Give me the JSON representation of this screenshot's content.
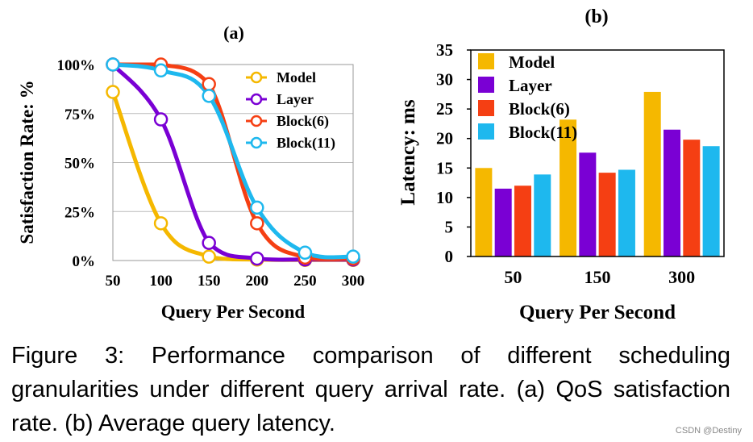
{
  "chart_data": [
    {
      "type": "line",
      "title": "(a)",
      "xlabel": "Query Per Second",
      "ylabel": "Satisfaction Rate: %",
      "x": [
        50,
        100,
        150,
        200,
        250,
        300
      ],
      "xlim": [
        50,
        300
      ],
      "ylim": [
        0,
        100
      ],
      "yticks": [
        "0%",
        "25%",
        "50%",
        "75%",
        "100%"
      ],
      "ytick_values": [
        0,
        25,
        50,
        75,
        100
      ],
      "grid": true,
      "legend": "top-right",
      "series": [
        {
          "name": "Model",
          "color": "#F5B800",
          "values": [
            86,
            19,
            2,
            0.5,
            0.3,
            0.3
          ]
        },
        {
          "name": "Layer",
          "color": "#7A00D4",
          "values": [
            100,
            72,
            9,
            1,
            0.5,
            0.5
          ]
        },
        {
          "name": "Block(6)",
          "color": "#F53F13",
          "values": [
            100,
            100,
            90,
            19,
            1.5,
            1
          ]
        },
        {
          "name": "Block(11)",
          "color": "#1EB8EE",
          "values": [
            100,
            97,
            84,
            27,
            4,
            2
          ]
        }
      ]
    },
    {
      "type": "bar",
      "title": "(b)",
      "xlabel": "Query Per Second",
      "ylabel": "Latency: ms",
      "categories": [
        "50",
        "150",
        "300"
      ],
      "ylim": [
        0,
        35
      ],
      "yticks": [
        0,
        5,
        10,
        15,
        20,
        25,
        30,
        35
      ],
      "legend": "top-left",
      "series": [
        {
          "name": "Model",
          "color": "#F5B800",
          "values": [
            15.0,
            23.2,
            27.9
          ]
        },
        {
          "name": "Layer",
          "color": "#7A00D4",
          "values": [
            11.5,
            17.6,
            21.5
          ]
        },
        {
          "name": "Block(6)",
          "color": "#F53F13",
          "values": [
            12.0,
            14.2,
            19.8
          ]
        },
        {
          "name": "Block(11)",
          "color": "#1EB8EE",
          "values": [
            13.9,
            14.7,
            18.7
          ]
        }
      ]
    }
  ],
  "caption": "Figure 3:  Performance comparison of different scheduling granularities under different query arrival rate.  (a) QoS satisfaction rate. (b) Average query latency.",
  "watermark": "CSDN @Destiny"
}
